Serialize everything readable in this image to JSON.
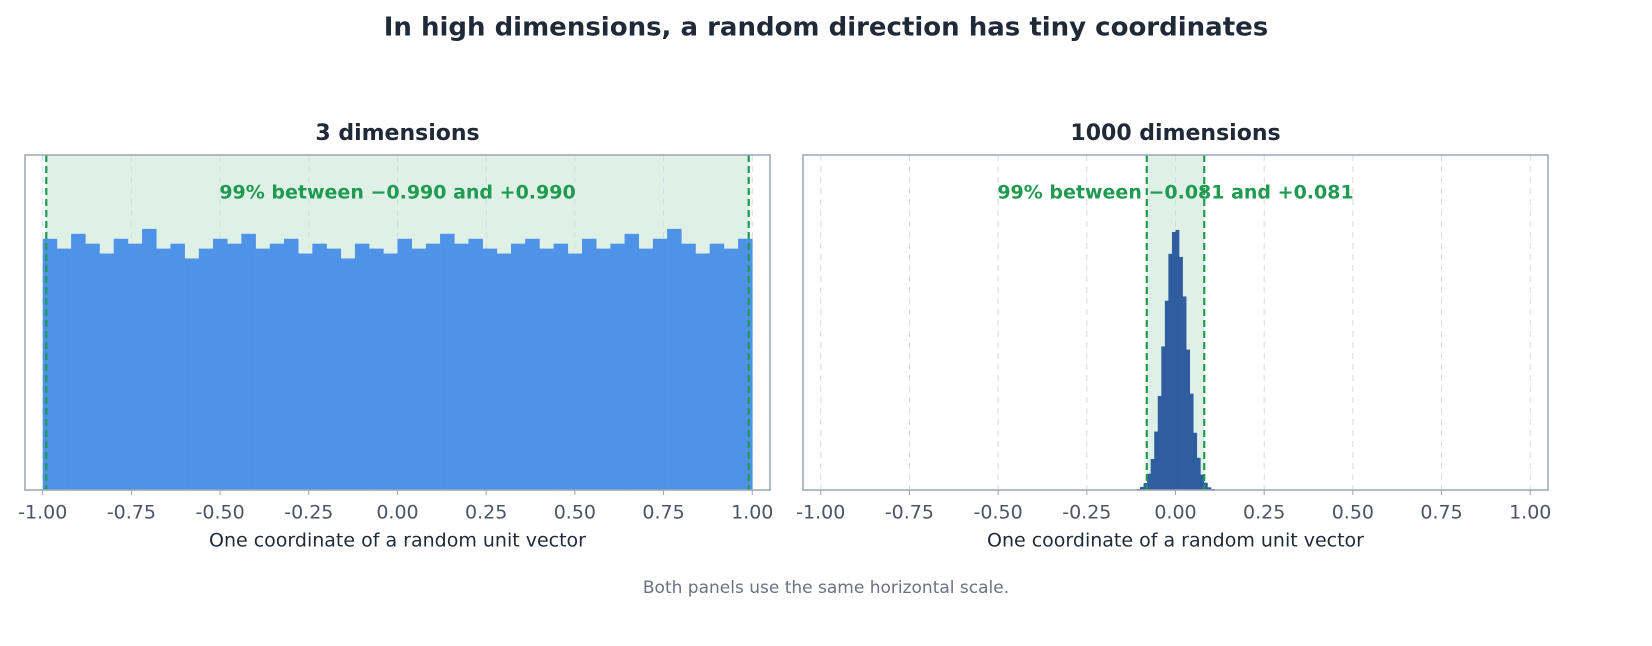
{
  "title": "In high dimensions, a random direction has tiny coordinates",
  "note": "Both panels use the same horizontal scale.",
  "chart_data": [
    {
      "type": "histogram",
      "title": "3 dimensions",
      "x_label": "One coordinate of a random unit vector",
      "color": "#4f93e8",
      "grid": true,
      "bins": [
        -1,
        -0.96,
        -0.92,
        -0.88,
        -0.84,
        -0.8,
        -0.76,
        -0.72,
        -0.68,
        -0.64,
        -0.6,
        -0.56,
        -0.52,
        -0.48,
        -0.44,
        -0.4,
        -0.36,
        -0.32,
        -0.28,
        -0.24,
        -0.2,
        -0.16,
        -0.12,
        -0.08,
        -0.04,
        0,
        0.04,
        0.08,
        0.12,
        0.16,
        0.2,
        0.24,
        0.28,
        0.32,
        0.36,
        0.4,
        0.44,
        0.48,
        0.52,
        0.56,
        0.6,
        0.64,
        0.68,
        0.72,
        0.76,
        0.8,
        0.84,
        0.88,
        0.92,
        0.96,
        1
      ],
      "values": [
        0.51,
        0.49,
        0.52,
        0.5,
        0.48,
        0.51,
        0.5,
        0.53,
        0.49,
        0.5,
        0.47,
        0.49,
        0.51,
        0.5,
        0.52,
        0.49,
        0.5,
        0.51,
        0.48,
        0.5,
        0.49,
        0.47,
        0.5,
        0.49,
        0.48,
        0.51,
        0.49,
        0.5,
        0.52,
        0.5,
        0.51,
        0.49,
        0.48,
        0.5,
        0.51,
        0.49,
        0.5,
        0.48,
        0.51,
        0.49,
        0.5,
        0.52,
        0.49,
        0.51,
        0.53,
        0.5,
        0.48,
        0.5,
        0.49,
        0.51
      ],
      "band": {
        "range": [
          -0.99,
          0.99
        ],
        "label": "99% between −0.990 and +0.990",
        "color": "#1f9a50"
      },
      "xlim": [
        -1.05,
        1.05
      ],
      "ylim": [
        0,
        0.68
      ],
      "xticks": [
        {
          "value": -1,
          "label": "-1.00"
        },
        {
          "value": -0.75,
          "label": "-0.75"
        },
        {
          "value": -0.5,
          "label": "-0.50"
        },
        {
          "value": -0.25,
          "label": "-0.25"
        },
        {
          "value": 0,
          "label": "0.00"
        },
        {
          "value": 0.25,
          "label": "0.25"
        },
        {
          "value": 0.5,
          "label": "0.50"
        },
        {
          "value": 0.75,
          "label": "0.75"
        },
        {
          "value": 1,
          "label": "1.00"
        }
      ]
    },
    {
      "type": "histogram",
      "title": "1000 dimensions",
      "x_label": "One coordinate of a random unit vector",
      "color": "#2f5d9f",
      "grid": true,
      "bins": [
        -0.12,
        -0.11,
        -0.1,
        -0.09,
        -0.08,
        -0.07,
        -0.06,
        -0.05,
        -0.04,
        -0.03,
        -0.02,
        -0.01,
        0,
        0.01,
        0.02,
        0.03,
        0.04,
        0.05,
        0.06,
        0.07,
        0.08,
        0.09,
        0.1,
        0.11,
        0.12
      ],
      "values": [
        0.02,
        0.05,
        0.15,
        0.33,
        0.78,
        1.49,
        2.81,
        4.52,
        6.9,
        9.1,
        11.35,
        12.4,
        12.5,
        11.2,
        9.3,
        6.75,
        4.63,
        2.75,
        1.55,
        0.74,
        0.35,
        0.13,
        0.05,
        0.02
      ],
      "band": {
        "range": [
          -0.081,
          0.081
        ],
        "label": "99% between −0.081 and +0.081",
        "color": "#1f9a50"
      },
      "xlim": [
        -1.05,
        1.05
      ],
      "ylim": [
        0,
        16.1
      ],
      "xticks": [
        {
          "value": -1,
          "label": "-1.00"
        },
        {
          "value": -0.75,
          "label": "-0.75"
        },
        {
          "value": -0.5,
          "label": "-0.50"
        },
        {
          "value": -0.25,
          "label": "-0.25"
        },
        {
          "value": 0,
          "label": "0.00"
        },
        {
          "value": 0.25,
          "label": "0.25"
        },
        {
          "value": 0.5,
          "label": "0.50"
        },
        {
          "value": 0.75,
          "label": "0.75"
        },
        {
          "value": 1,
          "label": "1.00"
        }
      ]
    }
  ]
}
